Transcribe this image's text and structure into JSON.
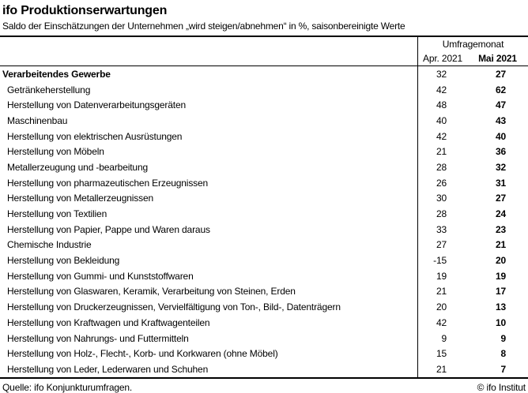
{
  "chart_data": {
    "type": "table",
    "title": "ifo Produktionserwartungen",
    "subtitle": "Saldo der Einschätzungen der Unternehmen „wird steigen/abnehmen“ in %, saisonbereinigte Werte",
    "column_group_label": "Umfragemonat",
    "value_unit": "%",
    "categories": [
      "Verarbeitendes Gewerbe",
      "Getränkeherstellung",
      "Herstellung von Datenverarbeitungsgeräten",
      "Maschinenbau",
      "Herstellung von elektrischen Ausrüstungen",
      "Herstellung von Möbeln",
      "Metallerzeugung und -bearbeitung",
      "Herstellung von pharmazeutischen Erzeugnissen",
      "Herstellung von Metallerzeugnissen",
      "Herstellung von Textilien",
      "Herstellung von Papier, Pappe und Waren daraus",
      "Chemische Industrie",
      "Herstellung von Bekleidung",
      "Herstellung von Gummi- und Kunststoffwaren",
      "Herstellung von Glaswaren, Keramik, Verarbeitung von Steinen, Erden",
      "Herstellung von Druckerzeugnissen, Vervielfältigung von Ton-, Bild-, Datenträgern",
      "Herstellung von Kraftwagen und Kraftwagenteilen",
      "Herstellung von Nahrungs- und Futtermitteln",
      "Herstellung von Holz-, Flecht-, Korb- und Korkwaren (ohne Möbel)",
      "Herstellung von Leder, Lederwaren und Schuhen"
    ],
    "series": [
      {
        "name": "Apr. 2021",
        "values": [
          32,
          42,
          48,
          40,
          42,
          21,
          28,
          26,
          30,
          28,
          33,
          27,
          -15,
          19,
          21,
          20,
          42,
          9,
          15,
          21
        ]
      },
      {
        "name": "Mai 2021",
        "values": [
          27,
          62,
          47,
          43,
          40,
          36,
          32,
          31,
          27,
          24,
          23,
          21,
          20,
          19,
          17,
          13,
          10,
          9,
          8,
          7
        ]
      }
    ]
  },
  "footer": {
    "source": "Quelle: ifo Konjunkturumfragen.",
    "copyright": "© ifo Institut"
  }
}
